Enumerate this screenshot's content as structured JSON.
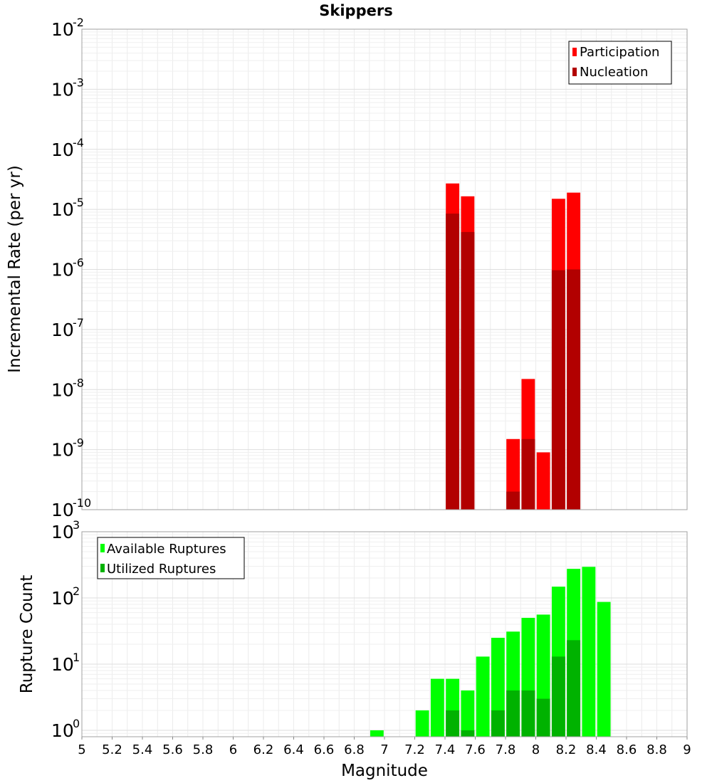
{
  "chart_data": [
    {
      "type": "bar",
      "title": "Skippers",
      "ylabel": "Incremental Rate (per yr)",
      "xlabel": "",
      "y_scale": "log",
      "ylim": [
        1e-10,
        0.01
      ],
      "xlim": [
        5,
        9
      ],
      "y_tick_exponents": [
        "-10",
        "-9",
        "-8",
        "-7",
        "-6",
        "-5",
        "-4",
        "-3",
        "-2"
      ],
      "legend_position": "top-right",
      "grid": true,
      "overlay": true,
      "series": [
        {
          "name": "Participation",
          "color": "#ff0000",
          "points": [
            {
              "x": 7.45,
              "y": 2.7e-05
            },
            {
              "x": 7.55,
              "y": 1.65e-05
            },
            {
              "x": 7.85,
              "y": 1.5e-09
            },
            {
              "x": 7.95,
              "y": 1.5e-08
            },
            {
              "x": 8.05,
              "y": 9e-10
            },
            {
              "x": 8.15,
              "y": 1.5e-05
            },
            {
              "x": 8.25,
              "y": 1.9e-05
            }
          ]
        },
        {
          "name": "Nucleation",
          "color": "#b20000",
          "points": [
            {
              "x": 7.45,
              "y": 8.5e-06
            },
            {
              "x": 7.55,
              "y": 4.2e-06
            },
            {
              "x": 7.85,
              "y": 2e-10
            },
            {
              "x": 7.95,
              "y": 1.5e-09
            },
            {
              "x": 8.15,
              "y": 9.7e-07
            },
            {
              "x": 8.25,
              "y": 1e-06
            }
          ]
        }
      ]
    },
    {
      "type": "bar",
      "ylabel": "Rupture Count",
      "xlabel": "Magnitude",
      "y_scale": "log",
      "ylim": [
        0.8,
        1000
      ],
      "xlim": [
        5,
        9
      ],
      "y_tick_exponents": [
        "0",
        "1",
        "2",
        "3"
      ],
      "x_ticks": [
        "5",
        "5.2",
        "5.4",
        "5.6",
        "5.8",
        "6",
        "6.2",
        "6.4",
        "6.6",
        "6.8",
        "7",
        "7.2",
        "7.4",
        "7.6",
        "7.8",
        "8",
        "8.2",
        "8.4",
        "8.6",
        "8.8",
        "9"
      ],
      "legend_position": "top-left",
      "grid": true,
      "overlay": true,
      "series": [
        {
          "name": "Available Ruptures",
          "color": "#00ff00",
          "points": [
            {
              "x": 6.95,
              "y": 1
            },
            {
              "x": 7.25,
              "y": 2
            },
            {
              "x": 7.35,
              "y": 6
            },
            {
              "x": 7.45,
              "y": 6
            },
            {
              "x": 7.55,
              "y": 4
            },
            {
              "x": 7.65,
              "y": 13
            },
            {
              "x": 7.75,
              "y": 25
            },
            {
              "x": 7.85,
              "y": 31
            },
            {
              "x": 7.95,
              "y": 50
            },
            {
              "x": 8.05,
              "y": 56
            },
            {
              "x": 8.15,
              "y": 148
            },
            {
              "x": 8.25,
              "y": 275
            },
            {
              "x": 8.35,
              "y": 295
            },
            {
              "x": 8.45,
              "y": 87
            }
          ]
        },
        {
          "name": "Utilized Ruptures",
          "color": "#00b200",
          "points": [
            {
              "x": 7.45,
              "y": 2
            },
            {
              "x": 7.55,
              "y": 1
            },
            {
              "x": 7.75,
              "y": 2
            },
            {
              "x": 7.85,
              "y": 4
            },
            {
              "x": 7.95,
              "y": 4
            },
            {
              "x": 8.05,
              "y": 3
            },
            {
              "x": 8.15,
              "y": 13
            },
            {
              "x": 8.25,
              "y": 23
            }
          ]
        }
      ]
    }
  ]
}
